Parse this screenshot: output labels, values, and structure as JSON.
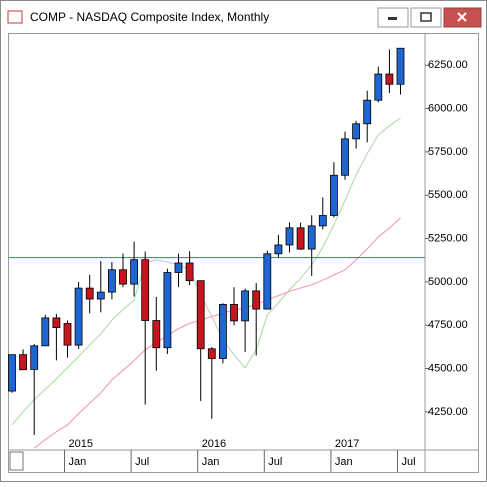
{
  "window": {
    "title": "COMP - NASDAQ Composite Index, Monthly"
  },
  "chart_data": {
    "type": "candlestick",
    "categories": [
      null,
      null,
      null,
      null,
      null,
      "Jan",
      null,
      null,
      null,
      null,
      null,
      "Jul",
      null,
      null,
      null,
      null,
      null,
      "Jan",
      null,
      null,
      null,
      null,
      null,
      "Jul",
      null,
      null,
      null,
      null,
      null,
      "Jan",
      null,
      null,
      null,
      null,
      null,
      "Jul"
    ],
    "category_groups": [
      null,
      null,
      null,
      null,
      null,
      "2015",
      null,
      null,
      null,
      null,
      null,
      null,
      null,
      null,
      null,
      null,
      null,
      "2016",
      null,
      null,
      null,
      null,
      null,
      null,
      null,
      null,
      null,
      null,
      null,
      "2017",
      null,
      null,
      null,
      null,
      null,
      null
    ],
    "open": [
      4370,
      4580,
      4495,
      4631,
      4792,
      4760,
      4635,
      4964,
      4901,
      4941,
      5070,
      4987,
      5128,
      4777,
      4620,
      5054,
      5109,
      5007,
      4614,
      4558,
      4870,
      4775,
      4948,
      4843,
      5162,
      5213,
      5312,
      5189,
      5323,
      5383,
      5615,
      5825,
      5912,
      6048,
      6199,
      6140
    ],
    "high": [
      4580,
      4610,
      4641,
      4810,
      4815,
      4777,
      4999,
      5042,
      5120,
      5114,
      5164,
      5232,
      5175,
      4913,
      5076,
      5163,
      5177,
      5007,
      4624,
      4877,
      4969,
      4961,
      4993,
      5180,
      5271,
      5343,
      5342,
      5384,
      5487,
      5690,
      5867,
      5929,
      6103,
      6242,
      6341,
      6348
    ],
    "low": [
      4360,
      4490,
      4117,
      4630,
      4547,
      4563,
      4613,
      4818,
      4824,
      4899,
      4970,
      4916,
      4292,
      4487,
      4584,
      4970,
      4981,
      4313,
      4210,
      4530,
      4749,
      4595,
      4575,
      4842,
      5142,
      5170,
      5184,
      5034,
      5302,
      5372,
      5589,
      5769,
      5805,
      6036,
      6089,
      6081
    ],
    "close": [
      4580,
      4493,
      4631,
      4792,
      4736,
      4635,
      4964,
      4901,
      4941,
      5070,
      4987,
      5128,
      4777,
      4620,
      5054,
      5109,
      5007,
      4614,
      4558,
      4870,
      4775,
      4948,
      4843,
      5162,
      5213,
      5312,
      5189,
      5323,
      5383,
      5615,
      5825,
      5912,
      6048,
      6199,
      6140,
      6348
    ],
    "up_color": "#1f66d1",
    "down_color": "#c4161c",
    "lines": [
      {
        "color": "#b9dcb3",
        "values": [
          4175,
          4250,
          4320,
          4380,
          4440,
          4505,
          4570,
          4636,
          4700,
          4780,
          4840,
          4896,
          5110,
          5127,
          5115,
          5098,
          5070,
          4925,
          4800,
          4665,
          4580,
          4504,
          4608,
          4810,
          4880,
          4954,
          5020,
          5098,
          5200,
          5329,
          5470,
          5617,
          5740,
          5848,
          5900,
          5946
        ]
      },
      {
        "color": "#f2a2ba",
        "values": [
          null,
          null,
          4040,
          4090,
          4135,
          4175,
          4240,
          4300,
          4360,
          4435,
          4490,
          4545,
          4608,
          4650,
          4690,
          4730,
          4760,
          4780,
          4800,
          4820,
          4838,
          4850,
          4870,
          4896,
          4920,
          4945,
          4965,
          4983,
          5010,
          5040,
          5069,
          5127,
          5190,
          5260,
          5310,
          5369
        ]
      }
    ],
    "hline": {
      "value": 5140,
      "color": "#2f72d6"
    },
    "ylim": [
      4030,
      6430
    ],
    "yticks": [
      {
        "value": 4250,
        "label": "4250.00"
      },
      {
        "value": 4500,
        "label": "4500.00"
      },
      {
        "value": 4750,
        "label": "4750.00"
      },
      {
        "value": 5000,
        "label": "5000.00"
      },
      {
        "value": 5250,
        "label": "5250.00"
      },
      {
        "value": 5500,
        "label": "5500.00"
      },
      {
        "value": 5750,
        "label": "5750.00"
      },
      {
        "value": 6000,
        "label": "6000.00"
      },
      {
        "value": 6250,
        "label": "6250.00"
      }
    ]
  }
}
